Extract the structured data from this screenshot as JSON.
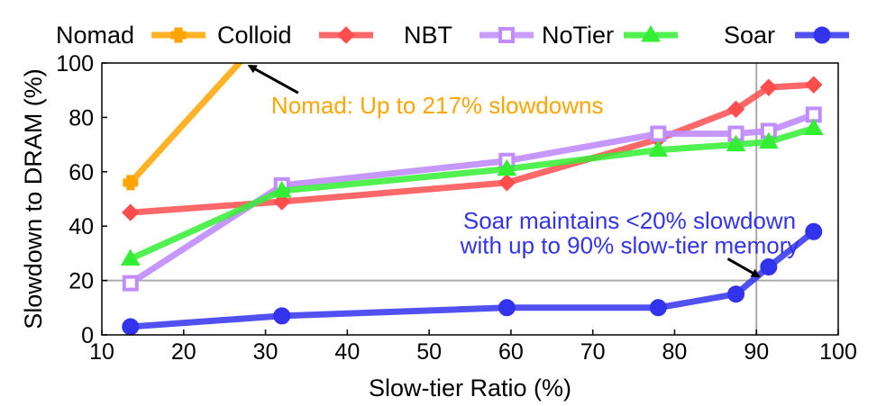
{
  "chart_data": {
    "type": "line",
    "xlabel": "Slow-tier Ratio (%)",
    "ylabel": "Slowdown to DRAM (%)",
    "xlim": [
      10,
      100
    ],
    "ylim": [
      0,
      100
    ],
    "xticks": [
      10,
      20,
      30,
      40,
      50,
      60,
      70,
      80,
      90,
      100
    ],
    "yticks": [
      0,
      20,
      40,
      60,
      80,
      100
    ],
    "grid": false,
    "reference_lines": {
      "x": 90,
      "y": 20
    },
    "legend_position": "top",
    "series": [
      {
        "name": "Nomad",
        "color": "#FFA500",
        "marker": "plus",
        "clip_above_ylim": true,
        "x": [
          13.5,
          28
        ],
        "y": [
          56,
          104
        ]
      },
      {
        "name": "Colloid",
        "color": "#FF4D4D",
        "marker": "diamond",
        "x": [
          13.5,
          32,
          59.5,
          78,
          87.5,
          91.5,
          97
        ],
        "y": [
          45,
          49,
          56,
          72,
          83,
          91,
          92
        ]
      },
      {
        "name": "NBT",
        "color": "#C08CFF",
        "marker": "square",
        "x": [
          13.5,
          32,
          59.5,
          78,
          87.5,
          91.5,
          97
        ],
        "y": [
          19,
          55,
          64,
          74,
          74,
          75,
          81
        ]
      },
      {
        "name": "NoTier",
        "color": "#33EE33",
        "marker": "triangle",
        "x": [
          13.5,
          32,
          59.5,
          78,
          87.5,
          91.5,
          97
        ],
        "y": [
          28,
          53,
          61,
          68,
          70,
          71,
          76
        ]
      },
      {
        "name": "Soar",
        "color": "#3333EE",
        "marker": "circle",
        "x": [
          13.5,
          32,
          59.5,
          78,
          87.5,
          91.5,
          97
        ],
        "y": [
          3,
          7,
          10,
          10,
          15,
          25,
          38
        ]
      }
    ],
    "annotations": [
      {
        "text": "Nomad: Up to 217% slowdowns",
        "color": "#FFA500",
        "anchor_x": 27.5,
        "anchor_y": 100,
        "text_x": 51,
        "text_y": 84.5,
        "arrow_from": [
          34,
          89
        ],
        "arrow_to": [
          28,
          99
        ]
      },
      {
        "lines": [
          "Soar maintains <20% slowdown",
          "with up to 90% slow-tier memory"
        ],
        "color": "#3333EE",
        "text_x": 74.5,
        "text_y": [
          42,
          33
        ],
        "arrow_from": [
          86.5,
          28
        ],
        "arrow_to": [
          90.3,
          21.5
        ]
      }
    ]
  }
}
